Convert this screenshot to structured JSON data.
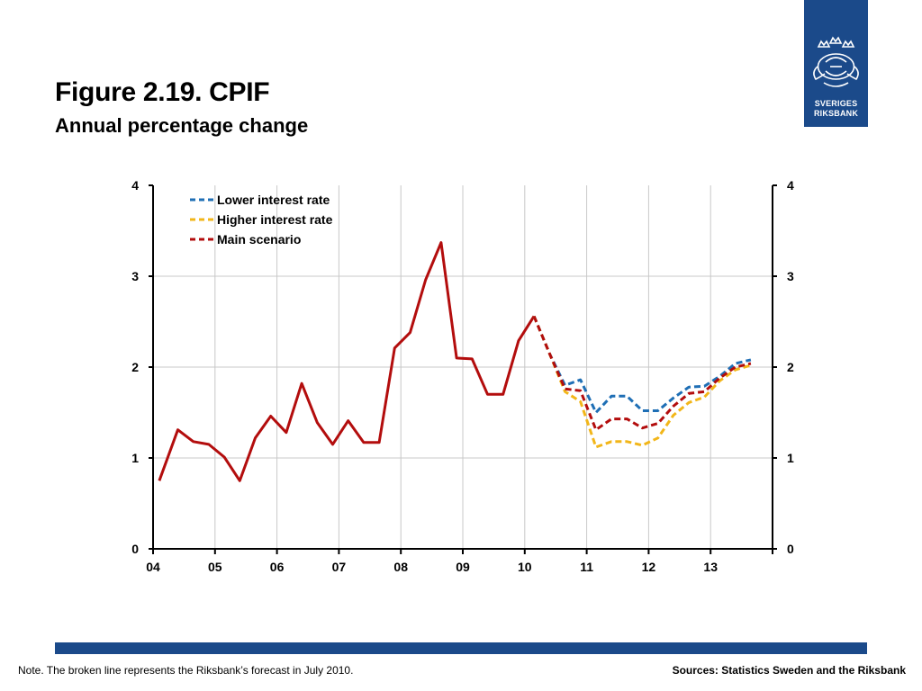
{
  "title": "Figure 2.19. CPIF",
  "subtitle": "Annual percentage change",
  "logo": {
    "line1": "SVERIGES",
    "line2": "RIKSBANK"
  },
  "note": "Note. The broken line represents the Riksbank’s forecast in July 2010.",
  "sources": "Sources: Statistics Sweden and the Riksbank",
  "colors": {
    "brand": "#1b4a8a",
    "main": "#b30d0d",
    "lower": "#1f6fb5",
    "higher": "#f2b619"
  },
  "chart_data": {
    "type": "line",
    "x_ticks": [
      "04",
      "05",
      "06",
      "07",
      "08",
      "09",
      "10",
      "11",
      "12",
      "13"
    ],
    "y_ticks": [
      0,
      1,
      2,
      3,
      4
    ],
    "ylim": [
      0,
      4
    ],
    "xlim": [
      2004,
      2014.0
    ],
    "grid": true,
    "legend_position": "top-left",
    "series": [
      {
        "name": "Main scenario",
        "style": "solid",
        "color": "#b30d0d",
        "x": [
          2004.1,
          2004.4,
          2004.65,
          2004.9,
          2005.15,
          2005.4,
          2005.65,
          2005.9,
          2006.15,
          2006.4,
          2006.65,
          2006.9,
          2007.15,
          2007.4,
          2007.65,
          2007.9,
          2008.15,
          2008.4,
          2008.65,
          2008.9,
          2009.15,
          2009.4,
          2009.65,
          2009.9,
          2010.15
        ],
        "y": [
          0.75,
          1.31,
          1.18,
          1.15,
          1.01,
          0.75,
          1.22,
          1.46,
          1.28,
          1.82,
          1.39,
          1.15,
          1.41,
          1.17,
          1.17,
          2.21,
          2.38,
          2.96,
          3.37,
          2.1,
          2.09,
          1.7,
          1.7,
          2.29,
          2.56
        ]
      },
      {
        "name": "Lower interest rate",
        "style": "dashed",
        "color": "#1f6fb5",
        "x": [
          2010.15,
          2010.4,
          2010.65,
          2010.9,
          2011.15,
          2011.4,
          2011.65,
          2011.9,
          2012.15,
          2012.4,
          2012.65,
          2012.9,
          2013.15,
          2013.4,
          2013.65
        ],
        "y": [
          2.56,
          2.15,
          1.8,
          1.86,
          1.5,
          1.68,
          1.68,
          1.52,
          1.52,
          1.66,
          1.78,
          1.79,
          1.9,
          2.04,
          2.08
        ]
      },
      {
        "name": "Higher interest rate",
        "style": "dashed",
        "color": "#f2b619",
        "x": [
          2010.15,
          2010.4,
          2010.65,
          2010.9,
          2011.15,
          2011.4,
          2011.65,
          2011.9,
          2012.15,
          2012.4,
          2012.65,
          2012.9,
          2013.15,
          2013.4,
          2013.65
        ],
        "y": [
          2.56,
          2.15,
          1.73,
          1.62,
          1.12,
          1.18,
          1.18,
          1.14,
          1.22,
          1.47,
          1.61,
          1.67,
          1.85,
          1.97,
          2.02
        ]
      },
      {
        "name": "Main scenario",
        "style": "dashed",
        "color": "#b30d0d",
        "x": [
          2010.15,
          2010.4,
          2010.65,
          2010.9,
          2011.15,
          2011.4,
          2011.65,
          2011.9,
          2012.15,
          2012.4,
          2012.65,
          2012.9,
          2013.15,
          2013.4,
          2013.65
        ],
        "y": [
          2.56,
          2.15,
          1.76,
          1.74,
          1.31,
          1.43,
          1.43,
          1.33,
          1.38,
          1.57,
          1.71,
          1.73,
          1.88,
          2.0,
          2.04
        ]
      }
    ],
    "legend": [
      {
        "label": "Lower interest rate",
        "color": "#1f6fb5"
      },
      {
        "label": "Higher interest rate",
        "color": "#f2b619"
      },
      {
        "label": "Main scenario",
        "color": "#b30d0d"
      }
    ]
  }
}
